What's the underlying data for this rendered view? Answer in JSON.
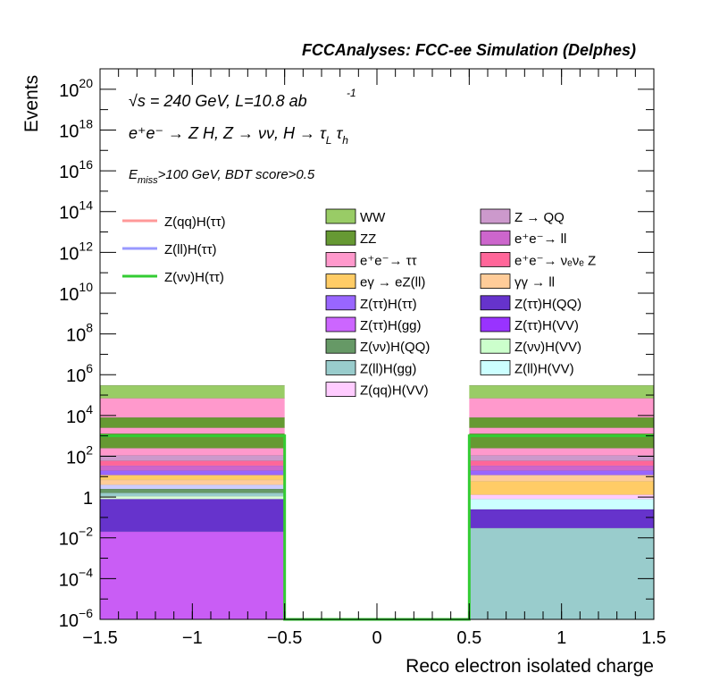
{
  "header": {
    "title": "FCCAnalyses: FCC-ee Simulation (Delphes)"
  },
  "annotations": {
    "energy": "√s = 240 GeV, L=10.8 ab",
    "energy_exp": "-1",
    "process": "e⁺e⁻ → Z H, Z → νν, H → τ_L τ_h",
    "selection": "E_miss>100 GeV, BDT score>0.5"
  },
  "chart_data": {
    "type": "bar",
    "stacked": true,
    "ylog": true,
    "xlabel": "Reco electron isolated charge",
    "ylabel": "Events",
    "xlim": [
      -1.5,
      1.5
    ],
    "ylim": [
      1e-06,
      1e+21
    ],
    "bins": [
      [
        -1.5,
        -0.5
      ],
      [
        -0.5,
        0.5
      ],
      [
        0.5,
        1.5
      ]
    ],
    "x_ticks": [
      "−1.5",
      "−1",
      "−0.5",
      "0",
      "0.5",
      "1",
      "1.5"
    ],
    "y_ticks": [
      {
        "base": "10",
        "exp": "−6"
      },
      {
        "base": "10",
        "exp": "−4"
      },
      {
        "base": "10",
        "exp": "−2"
      },
      {
        "base": "1",
        "exp": ""
      },
      {
        "base": "10",
        "exp": "2"
      },
      {
        "base": "10",
        "exp": "4"
      },
      {
        "base": "10",
        "exp": "6"
      },
      {
        "base": "10",
        "exp": "8"
      },
      {
        "base": "10",
        "exp": "10"
      },
      {
        "base": "10",
        "exp": "12"
      },
      {
        "base": "10",
        "exp": "14"
      },
      {
        "base": "10",
        "exp": "16"
      },
      {
        "base": "10",
        "exp": "18"
      },
      {
        "base": "10",
        "exp": "20"
      }
    ],
    "stack_left": [
      {
        "color": "#c95df5",
        "top": 0.02
      },
      {
        "color": "#6633cc",
        "top": 0.8
      },
      {
        "color": "#d6ffd6",
        "top": 1.1
      },
      {
        "color": "#99cccc",
        "top": 1.6
      },
      {
        "color": "#669966",
        "top": 2.5
      },
      {
        "color": "#ccccff",
        "top": 4
      },
      {
        "color": "#ffcc99",
        "top": 7
      },
      {
        "color": "#ffcc66",
        "top": 12
      },
      {
        "color": "#9966ff",
        "top": 20
      },
      {
        "color": "#cc66cc",
        "top": 35
      },
      {
        "color": "#ff6699",
        "top": 60
      },
      {
        "color": "#cc99cc",
        "top": 110
      },
      {
        "color": "#ff99cc",
        "top": 250
      },
      {
        "color": "#669933",
        "top": 1300
      },
      {
        "color": "#ff99cc",
        "top": 2500
      },
      {
        "color": "#669933",
        "top": 8000
      },
      {
        "color": "#ff99cc",
        "top": 70000
      },
      {
        "color": "#99cc66",
        "top": 300000
      }
    ],
    "stack_right": [
      {
        "color": "#99cccc",
        "top": 0.03
      },
      {
        "color": "#6633cc",
        "top": 0.25
      },
      {
        "color": "#ccffff",
        "top": 0.8
      },
      {
        "color": "#ffccff",
        "top": 1.3
      },
      {
        "color": "#ffcc66",
        "top": 6
      },
      {
        "color": "#ffcc99",
        "top": 12
      },
      {
        "color": "#9966ff",
        "top": 20
      },
      {
        "color": "#cc66cc",
        "top": 35
      },
      {
        "color": "#ff6699",
        "top": 60
      },
      {
        "color": "#cc99cc",
        "top": 110
      },
      {
        "color": "#ff99cc",
        "top": 250
      },
      {
        "color": "#669933",
        "top": 1300
      },
      {
        "color": "#ff99cc",
        "top": 2500
      },
      {
        "color": "#669933",
        "top": 8000
      },
      {
        "color": "#ff99cc",
        "top": 70000
      },
      {
        "color": "#99cc66",
        "top": 300000
      }
    ],
    "signal": {
      "name": "Z(νν)H(ττ)",
      "color": "#33cc33",
      "values": [
        1000,
        1e-06,
        1000
      ]
    },
    "legend_lines": [
      {
        "name": "Z(qq)H(ττ)",
        "color": "#ff9999"
      },
      {
        "name": "Z(ll)H(ττ)",
        "color": "#9999ff"
      },
      {
        "name": "Z(νν)H(ττ)",
        "color": "#33cc33"
      }
    ],
    "legend_boxes": [
      {
        "name": "WW",
        "color": "#99cc66"
      },
      {
        "name": "Z → QQ",
        "color": "#cc99cc"
      },
      {
        "name": "ZZ",
        "color": "#669933"
      },
      {
        "name": "e⁺e⁻→ ll",
        "color": "#cc66cc"
      },
      {
        "name": "e⁺e⁻→ ττ",
        "color": "#ff99cc"
      },
      {
        "name": "e⁺e⁻→ νₑνₑ Z",
        "color": "#ff6699"
      },
      {
        "name": "eγ → eZ(ll)",
        "color": "#ffcc66"
      },
      {
        "name": "γγ → ll",
        "color": "#ffcc99"
      },
      {
        "name": "Z(ττ)H(ττ)",
        "color": "#9966ff"
      },
      {
        "name": "Z(ττ)H(QQ)",
        "color": "#6633cc"
      },
      {
        "name": "Z(ττ)H(gg)",
        "color": "#cc66ff"
      },
      {
        "name": "Z(ττ)H(VV)",
        "color": "#9933ff"
      },
      {
        "name": "Z(νν)H(QQ)",
        "color": "#669966"
      },
      {
        "name": "Z(νν)H(VV)",
        "color": "#ccffcc"
      },
      {
        "name": "Z(ll)H(gg)",
        "color": "#99cccc"
      },
      {
        "name": "Z(ll)H(VV)",
        "color": "#ccffff"
      },
      {
        "name": "Z(qq)H(VV)",
        "color": "#ffccff"
      }
    ]
  }
}
